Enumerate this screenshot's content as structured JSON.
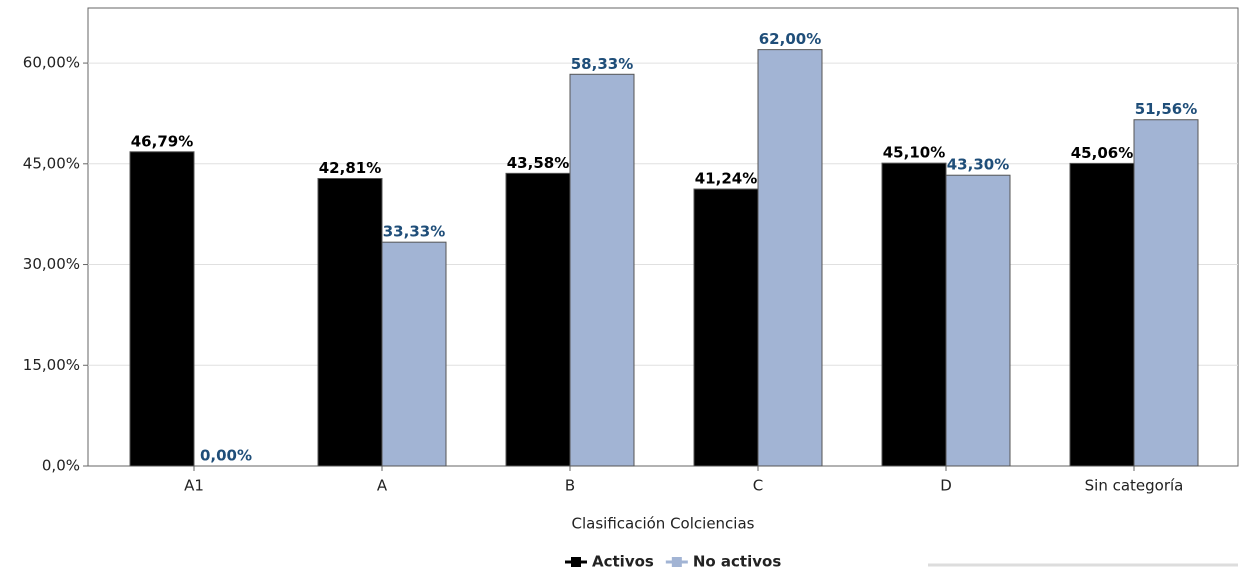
{
  "chart_data": {
    "type": "bar",
    "x_label": "Clasificación Colciencias",
    "categories": [
      "A1",
      "A",
      "B",
      "C",
      "D",
      "Sin categoría"
    ],
    "series": [
      {
        "name": "Activos",
        "color": "#000000",
        "label_color": "#000000",
        "values": [
          46.79,
          42.81,
          43.58,
          41.24,
          45.1,
          45.06
        ],
        "value_labels": [
          "46,79%",
          "42,81%",
          "43,58%",
          "41,24%",
          "45,10%",
          "45,06%"
        ]
      },
      {
        "name": "No activos",
        "color": "#a2b4d4",
        "label_color": "#1f4e79",
        "values": [
          0,
          33.33,
          58.33,
          62.0,
          43.3,
          51.56
        ],
        "value_labels": [
          "0,00%",
          "33,33%",
          "58,33%",
          "62,00%",
          "43,30%",
          "51,56%"
        ]
      }
    ],
    "ylim": [
      0,
      68.2
    ],
    "yticks": [
      {
        "value": 0,
        "label": "0,0%"
      },
      {
        "value": 15,
        "label": "15,00%"
      },
      {
        "value": 30,
        "label": "30,00%"
      },
      {
        "value": 45,
        "label": "45,00%"
      },
      {
        "value": 60,
        "label": "60,00%"
      }
    ],
    "grid": true,
    "legend": "bottom"
  }
}
